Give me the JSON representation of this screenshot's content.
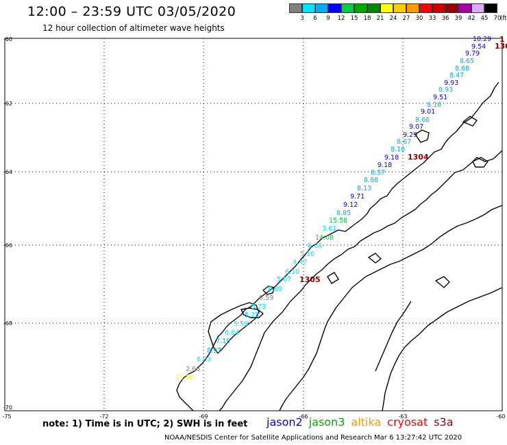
{
  "header": {
    "title": "12:00 – 23:59 UTC 03/05/2020",
    "subtitle": "12 hour collection of altimeter wave heights"
  },
  "legend": {
    "unit": "(ft)",
    "items": [
      {
        "label": "3",
        "color": "#808080"
      },
      {
        "label": "6",
        "color": "#00e5ff"
      },
      {
        "label": "9",
        "color": "#00aaff"
      },
      {
        "label": "12",
        "color": "#0000ff"
      },
      {
        "label": "15",
        "color": "#00cc44"
      },
      {
        "label": "18",
        "color": "#00aa00"
      },
      {
        "label": "21",
        "color": "#008800"
      },
      {
        "label": "24",
        "color": "#ffff00"
      },
      {
        "label": "27",
        "color": "#ffcc00"
      },
      {
        "label": "30",
        "color": "#ff9900"
      },
      {
        "label": "33",
        "color": "#ff0000"
      },
      {
        "label": "36",
        "color": "#cc0000"
      },
      {
        "label": "39",
        "color": "#990000"
      },
      {
        "label": "42",
        "color": "#aa00aa"
      },
      {
        "label": "45",
        "color": "#ddaaff"
      },
      {
        "label": "70",
        "color": "#000000"
      }
    ]
  },
  "axes": {
    "lat_labels": [
      "-60",
      "-62",
      "-64",
      "-66",
      "-68",
      "-70"
    ],
    "lon_labels": [
      "-75",
      "-72",
      "-69",
      "-66",
      "-63",
      "-60"
    ]
  },
  "track_labels": [
    {
      "text": "1305",
      "color": "#990000"
    },
    {
      "text": "1304",
      "color": "#990000"
    },
    {
      "text": "130",
      "color": "#990000"
    },
    {
      "text": "1",
      "color": "#990000"
    }
  ],
  "observations": [
    {
      "v": "10.29",
      "color": "#0000ff"
    },
    {
      "v": "9.54",
      "color": "#0000ff"
    },
    {
      "v": "9.79",
      "color": "#0000ff"
    },
    {
      "v": "8.65",
      "color": "#00aaff"
    },
    {
      "v": "8.68",
      "color": "#00aaff"
    },
    {
      "v": "8.47",
      "color": "#00aaff"
    },
    {
      "v": "9.93",
      "color": "#0000ff"
    },
    {
      "v": "8.93",
      "color": "#00aaff"
    },
    {
      "v": "9.51",
      "color": "#0000ff"
    },
    {
      "v": "8.16",
      "color": "#00aaff"
    },
    {
      "v": "9.01",
      "color": "#0000ff"
    },
    {
      "v": "8.66",
      "color": "#00aaff"
    },
    {
      "v": "9.07",
      "color": "#0000ff"
    },
    {
      "v": "9.29",
      "color": "#0000ff"
    },
    {
      "v": "8.67",
      "color": "#00aaff"
    },
    {
      "v": "8.10",
      "color": "#00aaff"
    },
    {
      "v": "9.18",
      "color": "#0000ff"
    },
    {
      "v": "9.18",
      "color": "#0000ff"
    },
    {
      "v": "8.57",
      "color": "#00aaff"
    },
    {
      "v": "8.88",
      "color": "#00aaff"
    },
    {
      "v": "8.13",
      "color": "#00aaff"
    },
    {
      "v": "9.71",
      "color": "#0000ff"
    },
    {
      "v": "9.12",
      "color": "#0000ff"
    },
    {
      "v": "8.85",
      "color": "#00aaff"
    },
    {
      "v": "15.58",
      "color": "#00cc44"
    },
    {
      "v": "3.61",
      "color": "#00e5ff"
    },
    {
      "v": "14.08",
      "color": "#00cc44"
    },
    {
      "v": "6.66",
      "color": "#00e5ff"
    },
    {
      "v": "5.10",
      "color": "#00e5ff"
    },
    {
      "v": "4.47",
      "color": "#00e5ff"
    },
    {
      "v": "6.10",
      "color": "#00e5ff"
    },
    {
      "v": "5.07",
      "color": "#00e5ff"
    },
    {
      "v": "6.89",
      "color": "#00e5ff"
    },
    {
      "v": "0.59",
      "color": "#808080"
    },
    {
      "v": "5.73",
      "color": "#00e5ff"
    },
    {
      "v": "5.25",
      "color": "#00e5ff"
    },
    {
      "v": "5.59",
      "color": "#00e5ff"
    },
    {
      "v": "6.84",
      "color": "#00e5ff"
    },
    {
      "v": "7.19",
      "color": "#00aaff"
    },
    {
      "v": "8.97",
      "color": "#00aaff"
    },
    {
      "v": "6.03",
      "color": "#00e5ff"
    },
    {
      "v": "2.66",
      "color": "#808080"
    },
    {
      "v": "22.66",
      "color": "#ffff00"
    }
  ],
  "footer": {
    "notes": "note: 1) Time is in UTC; 2) SWH is in feet",
    "satellites": [
      {
        "name": "jason2",
        "color": "#0000ff"
      },
      {
        "name": "jason3",
        "color": "#00aa00"
      },
      {
        "name": "altika",
        "color": "#ff9900"
      },
      {
        "name": "cryosat",
        "color": "#ff0000"
      },
      {
        "name": "s3a",
        "color": "#990000"
      }
    ],
    "credit": "NOAA/NESDIS Center for Satellite Applications and Research    Mar  6 13:27:42 UTC 2020"
  }
}
